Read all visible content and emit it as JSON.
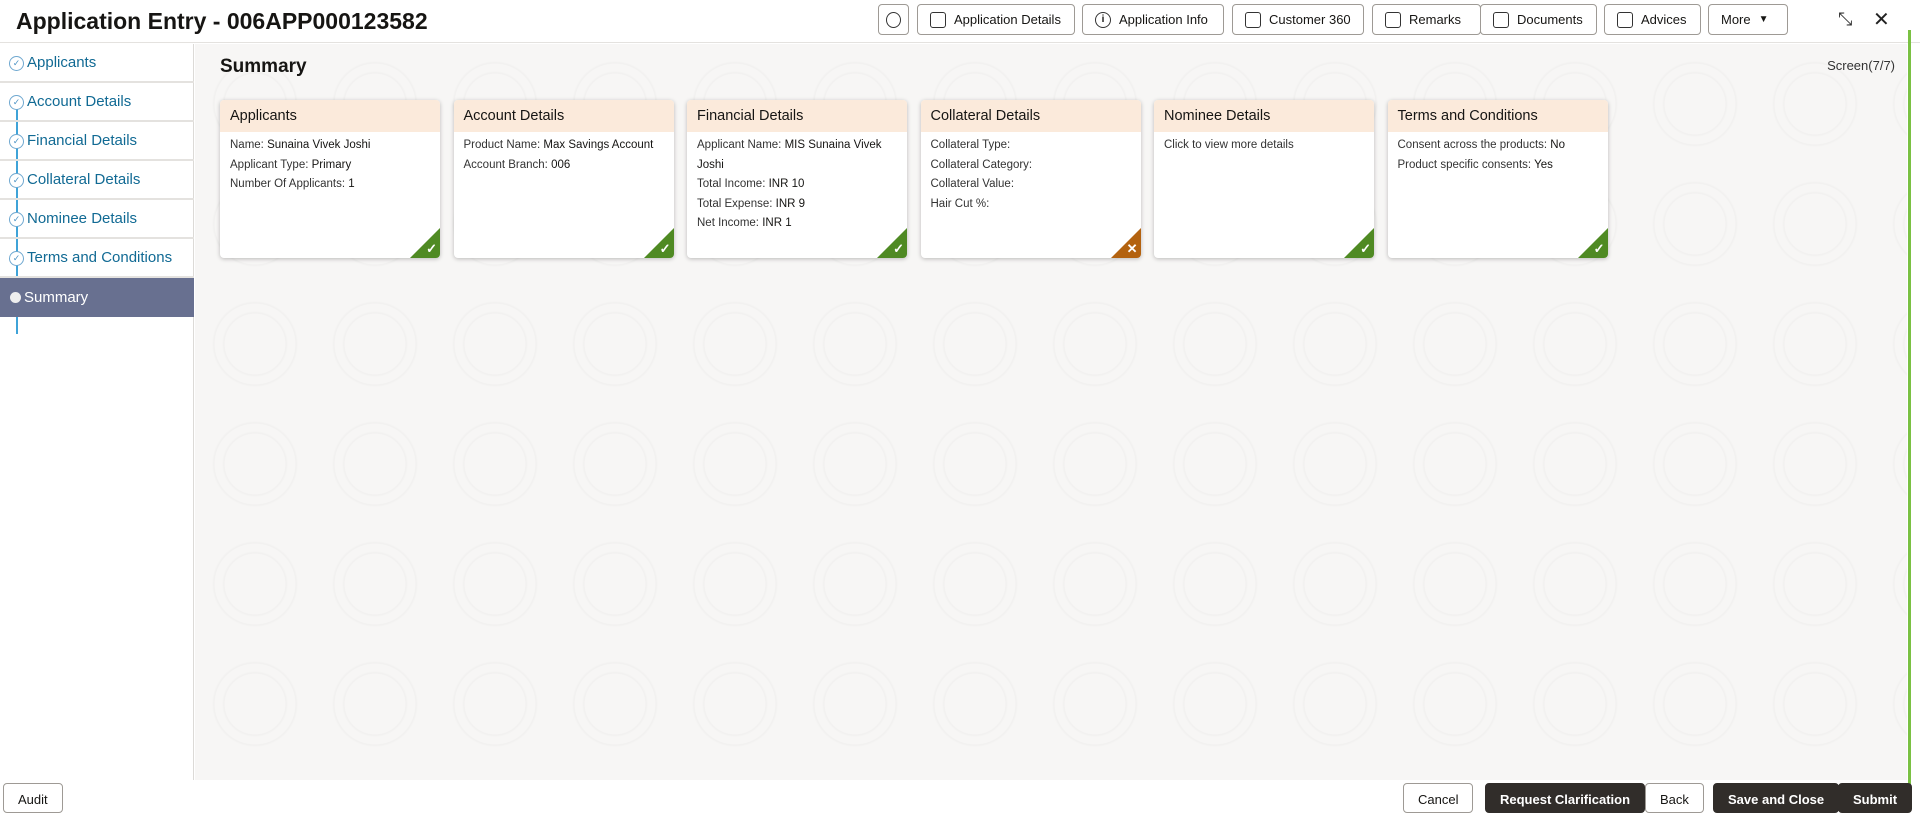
{
  "header": {
    "title": "Application Entry - 006APP000123582",
    "buttons": [
      {
        "label": "Application Details",
        "icon": "document-icon"
      },
      {
        "label": "Application Info",
        "icon": "info-icon"
      },
      {
        "label": "Customer 360",
        "icon": "user-card-icon"
      },
      {
        "label": "Remarks",
        "icon": "comment-icon"
      },
      {
        "label": "Documents",
        "icon": "document-icon"
      },
      {
        "label": "Advices",
        "icon": "stack-icon"
      }
    ],
    "more": "More"
  },
  "sidebar": {
    "items": [
      {
        "label": "Applicants"
      },
      {
        "label": "Account Details"
      },
      {
        "label": "Financial Details"
      },
      {
        "label": "Collateral Details"
      },
      {
        "label": "Nominee Details"
      },
      {
        "label": "Terms and Conditions"
      },
      {
        "label": "Summary"
      }
    ]
  },
  "main": {
    "title": "Summary",
    "screen": "Screen(7/7)",
    "cards": [
      {
        "title": "Applicants",
        "status": "complete",
        "lines": [
          [
            "Name: ",
            "Sunaina Vivek Joshi"
          ],
          [
            "Applicant Type: ",
            "Primary"
          ],
          [
            "Number Of Applicants: ",
            "1"
          ]
        ]
      },
      {
        "title": "Account Details",
        "status": "complete",
        "lines": [
          [
            "Product Name: ",
            "Max Savings Account"
          ],
          [
            "Account Branch: ",
            "006"
          ]
        ]
      },
      {
        "title": "Financial Details",
        "status": "complete",
        "lines": [
          [
            "Applicant Name: ",
            "MIS Sunaina Vivek Joshi"
          ],
          [
            "Total Income: ",
            "INR 10"
          ],
          [
            "Total Expense: ",
            "INR 9"
          ],
          [
            "Net Income: ",
            "INR 1"
          ]
        ]
      },
      {
        "title": "Collateral Details",
        "status": "incomplete",
        "lines": [
          [
            "Collateral Type:",
            ""
          ],
          [
            "Collateral Category:",
            ""
          ],
          [
            "Collateral Value:",
            ""
          ],
          [
            "Hair Cut %:",
            ""
          ]
        ]
      },
      {
        "title": "Nominee Details",
        "status": "complete",
        "lines": [
          [
            "Click to view more details",
            ""
          ]
        ]
      },
      {
        "title": "Terms and Conditions",
        "status": "complete",
        "lines": [
          [
            "Consent across the products: ",
            "No"
          ],
          [
            "Product specific consents: ",
            "Yes"
          ]
        ]
      }
    ]
  },
  "footer": {
    "audit": "Audit",
    "cancel": "Cancel",
    "request_clarification": "Request Clarification",
    "back": "Back",
    "save_and_close": "Save and Close",
    "submit": "Submit"
  },
  "colors": {
    "complete": "#4f8a23",
    "incomplete": "#b3620f",
    "active_nav": "#687090"
  }
}
